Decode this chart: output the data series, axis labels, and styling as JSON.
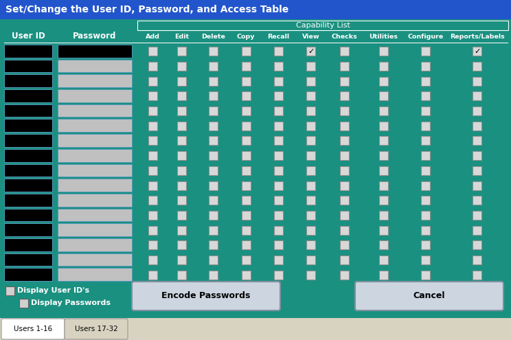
{
  "title": "Set/Change the User ID, Password, and Access Table",
  "title_bg": "#2255cc",
  "title_fg": "white",
  "main_bg": "#1a9080",
  "tab_bg": "#d8d3c0",
  "num_rows": 16,
  "capability_cols": [
    "Add",
    "Edit",
    "Delete",
    "Copy",
    "Recall",
    "View",
    "Checks",
    "Utilities",
    "Configure",
    "Reports/Labels"
  ],
  "capability_header": "Capability List",
  "userid_box_color": "#000000",
  "password_row0_color": "#000000",
  "password_other_color": "#c0c0c0",
  "checkbox_face": "#d8d8d8",
  "checkbox_border": "#909090",
  "button_encode_label": "Encode Passwords",
  "button_cancel_label": "Cancel",
  "tab1_label": "Users 1-16",
  "tab2_label": "Users 17-32",
  "display_userid_label": "Display User ID's",
  "display_passwords_label": "Display Passwords"
}
